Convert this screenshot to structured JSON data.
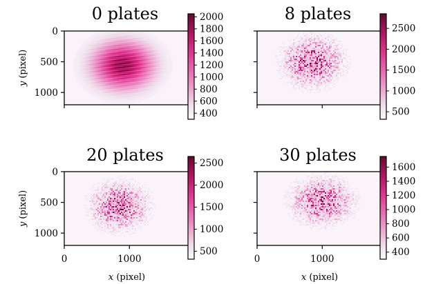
{
  "chart_data": [
    {
      "type": "heatmap",
      "title": "0 plates",
      "xlim": [
        0,
        1920
      ],
      "ylim": [
        1200,
        0
      ],
      "x_ticks": [],
      "y_ticks": [
        "0",
        "500",
        "1000"
      ],
      "xlabel": "",
      "ylabel": "y (pixel)",
      "colorbar": {
        "min": 300,
        "max": 2050,
        "ticks": [
          "400",
          "600",
          "800",
          "1000",
          "1200",
          "1400",
          "1600",
          "1800",
          "2000"
        ],
        "tick_values": [
          400,
          600,
          800,
          1000,
          1200,
          1400,
          1600,
          1800,
          2000
        ]
      },
      "beam": {
        "center_x": 900,
        "center_y": 560,
        "radius_x": 620,
        "radius_y": 520,
        "peak": 2000,
        "style": "smooth"
      }
    },
    {
      "type": "heatmap",
      "title": "8 plates",
      "xlim": [
        0,
        1920
      ],
      "ylim": [
        1200,
        0
      ],
      "x_ticks": [],
      "y_ticks": [],
      "xlabel": "",
      "ylabel": "",
      "colorbar": {
        "min": 320,
        "max": 2850,
        "ticks": [
          "500",
          "1000",
          "1500",
          "2000",
          "2500"
        ],
        "tick_values": [
          500,
          1000,
          1500,
          2000,
          2500
        ]
      },
      "beam": {
        "center_x": 850,
        "center_y": 500,
        "radius_x": 550,
        "radius_y": 480,
        "peak": 2800,
        "style": "speckle"
      }
    },
    {
      "type": "heatmap",
      "title": "20 plates",
      "xlim": [
        0,
        1920
      ],
      "ylim": [
        1200,
        0
      ],
      "x_ticks": [
        "0",
        "1000"
      ],
      "y_ticks": [
        "0",
        "500",
        "1000"
      ],
      "xlabel": "x (pixel)",
      "ylabel": "y (pixel)",
      "colorbar": {
        "min": 320,
        "max": 2650,
        "ticks": [
          "500",
          "1000",
          "1500",
          "2000",
          "2500"
        ],
        "tick_values": [
          500,
          1000,
          1500,
          2000,
          2500
        ]
      },
      "beam": {
        "center_x": 850,
        "center_y": 560,
        "radius_x": 520,
        "radius_y": 460,
        "peak": 2600,
        "style": "speckle"
      }
    },
    {
      "type": "heatmap",
      "title": "30 plates",
      "xlim": [
        0,
        1920
      ],
      "ylim": [
        1200,
        0
      ],
      "x_ticks": [
        "0",
        "1000"
      ],
      "y_ticks": [],
      "xlabel": "x (pixel)",
      "ylabel": "",
      "colorbar": {
        "min": 300,
        "max": 1750,
        "ticks": [
          "400",
          "600",
          "800",
          "1000",
          "1200",
          "1400",
          "1600"
        ],
        "tick_values": [
          400,
          600,
          800,
          1000,
          1200,
          1400,
          1600
        ]
      },
      "beam": {
        "center_x": 1000,
        "center_y": 480,
        "radius_x": 560,
        "radius_y": 450,
        "peak": 1650,
        "style": "speckle"
      }
    }
  ],
  "colors": {
    "low": "#fbf7fb",
    "mid": "#e23f95",
    "high": "#6b0a36"
  }
}
